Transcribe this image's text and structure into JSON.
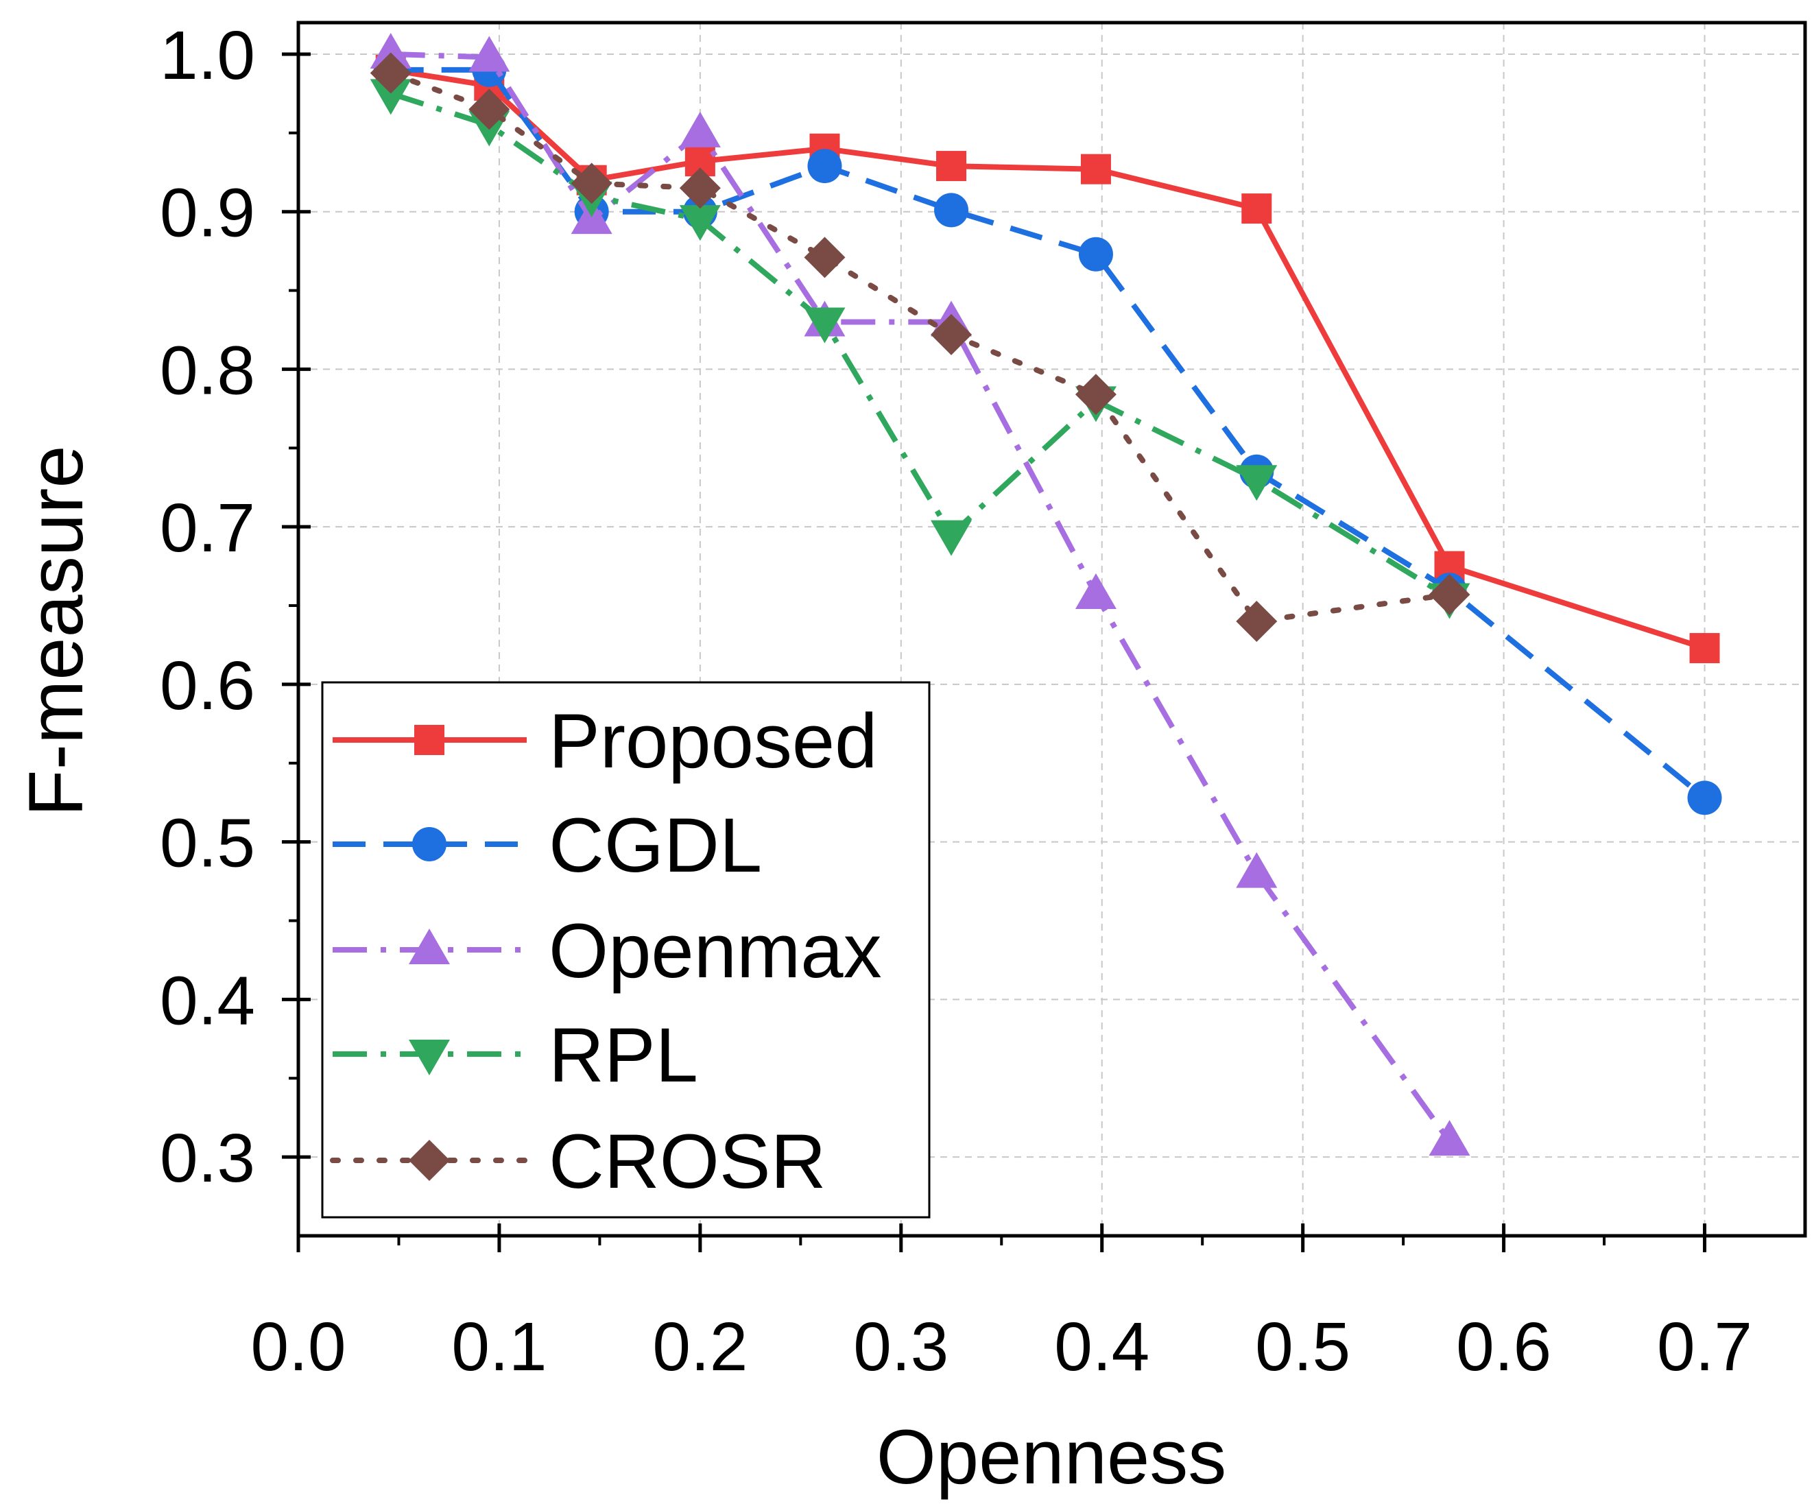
{
  "chart_data": {
    "type": "line",
    "title": "",
    "xlabel": "Openness",
    "ylabel": "F-measure",
    "xlim": [
      0.0,
      0.75
    ],
    "ylim": [
      0.25,
      1.02
    ],
    "xticks": [
      "0.0",
      "0.1",
      "0.2",
      "0.3",
      "0.4",
      "0.5",
      "0.6",
      "0.7"
    ],
    "yticks": [
      "0.3",
      "0.4",
      "0.5",
      "0.6",
      "0.7",
      "0.8",
      "0.9",
      "1.0"
    ],
    "grid": true,
    "legend_position": "bottom-left",
    "series": [
      {
        "name": "Proposed",
        "color": "#ee3b3b",
        "marker": "square",
        "line_style": "solid",
        "x": [
          0.046,
          0.095,
          0.146,
          0.2,
          0.262,
          0.325,
          0.397,
          0.477,
          0.573,
          0.7
        ],
        "y": [
          0.99,
          0.98,
          0.92,
          0.932,
          0.94,
          0.929,
          0.927,
          0.902,
          0.675,
          0.623
        ]
      },
      {
        "name": "CGDL",
        "color": "#1e6fe0",
        "marker": "circle",
        "line_style": "dash",
        "x": [
          0.046,
          0.095,
          0.146,
          0.2,
          0.262,
          0.325,
          0.397,
          0.477,
          0.573,
          0.7
        ],
        "y": [
          0.99,
          0.99,
          0.9,
          0.9,
          0.929,
          0.901,
          0.873,
          0.735,
          0.66,
          0.528
        ]
      },
      {
        "name": "Openmax",
        "color": "#a66ee0",
        "marker": "triangle-up",
        "line_style": "dashdot",
        "x": [
          0.046,
          0.095,
          0.146,
          0.2,
          0.262,
          0.325,
          0.397,
          0.477,
          0.573
        ],
        "y": [
          1.0,
          0.998,
          0.895,
          0.95,
          0.83,
          0.83,
          0.657,
          0.48,
          0.31
        ]
      },
      {
        "name": "RPL",
        "color": "#2fa85e",
        "marker": "triangle-down",
        "line_style": "dashdot",
        "x": [
          0.046,
          0.095,
          0.146,
          0.2,
          0.262,
          0.325,
          0.397,
          0.477,
          0.573
        ],
        "y": [
          0.975,
          0.955,
          0.91,
          0.895,
          0.83,
          0.695,
          0.78,
          0.73,
          0.655
        ]
      },
      {
        "name": "CROSR",
        "color": "#7a4a44",
        "marker": "diamond",
        "line_style": "dot",
        "x": [
          0.046,
          0.095,
          0.146,
          0.2,
          0.262,
          0.325,
          0.397,
          0.477,
          0.573
        ],
        "y": [
          0.988,
          0.965,
          0.918,
          0.915,
          0.871,
          0.822,
          0.784,
          0.64,
          0.657
        ]
      }
    ]
  }
}
